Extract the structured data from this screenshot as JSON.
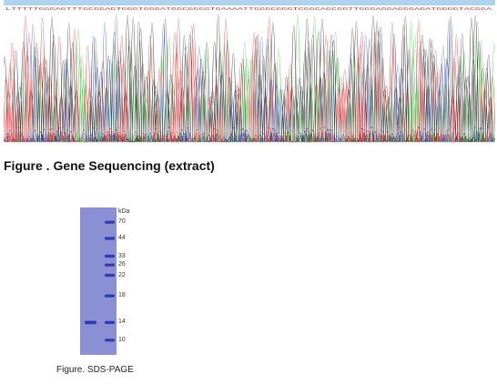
{
  "sequencing": {
    "bases": "LTTTTTGGGAGTTTGCGGAGTGGGTGGGATGGCGGGGTGAAAATTGGGCGGGTCGGCAGCGGTTGGGAGGAGGGAGATGGGGTACGGA",
    "caption": "Figure . Gene Sequencing (extract)",
    "trace_colors": {
      "A": "#4cc24c",
      "C": "#3b5bdb",
      "G": "#222222",
      "T": "#e03131"
    }
  },
  "gel": {
    "unit_label": "kDa",
    "markers": [
      {
        "label": "70",
        "y": 0.1
      },
      {
        "label": "44",
        "y": 0.21
      },
      {
        "label": "33",
        "y": 0.33
      },
      {
        "label": "26",
        "y": 0.39
      },
      {
        "label": "22",
        "y": 0.46
      },
      {
        "label": "18",
        "y": 0.6
      },
      {
        "label": "14",
        "y": 0.78
      },
      {
        "label": "10",
        "y": 0.9
      }
    ],
    "sample_band_y": 0.78,
    "background": "#8b8fd4",
    "band_color": "#2d3cb0",
    "caption": "Figure. SDS-PAGE"
  }
}
